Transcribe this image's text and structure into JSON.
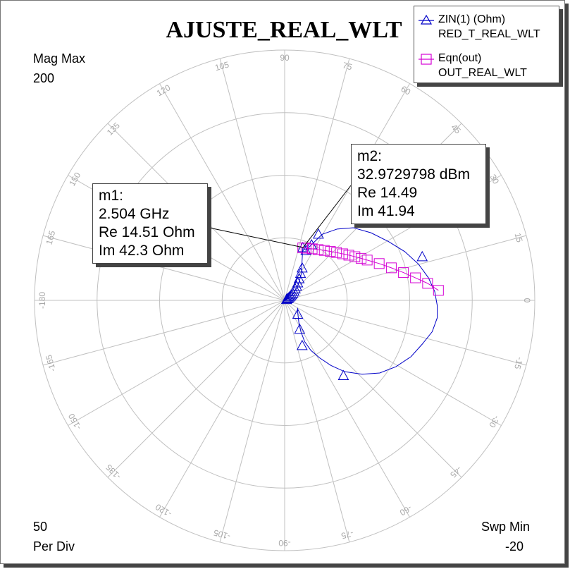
{
  "chart_data": {
    "type": "polar",
    "title": "AJUSTE_REAL_WLT",
    "radial_max_label": "Mag Max",
    "radial_max": "200",
    "radial_div": "50",
    "radial_div_label": "Per Div",
    "sweep_label": "Swp Min",
    "sweep_value": "-20",
    "r_max": 200,
    "r_div": 50,
    "angle_labels": [
      "0",
      "15",
      "30",
      "45",
      "60",
      "75",
      "90",
      "105",
      "120",
      "135",
      "150",
      "165",
      "-180",
      "-165",
      "-150",
      "-135",
      "-120",
      "-105",
      "-90",
      "-75",
      "-60",
      "-45",
      "-30",
      "-15"
    ],
    "angle_values": [
      0,
      15,
      30,
      45,
      60,
      75,
      90,
      105,
      120,
      135,
      150,
      165,
      180,
      195,
      210,
      225,
      240,
      255,
      270,
      285,
      300,
      315,
      330,
      345
    ],
    "series": [
      {
        "name": "ZIN(1) (Ohm)",
        "sub": "RED_T_REAL_WLT",
        "color": "#0000c8",
        "marker": "triangle",
        "points": [
          [
            0.8,
            0
          ],
          [
            1.5,
            0.8
          ],
          [
            2.2,
            1.4
          ],
          [
            3.0,
            2.0
          ],
          [
            4.0,
            2.8
          ],
          [
            5.0,
            3.6
          ],
          [
            6.0,
            4.6
          ],
          [
            7.2,
            5.8
          ],
          [
            8.2,
            7.3
          ],
          [
            9.3,
            9.2
          ],
          [
            10.3,
            11.4
          ],
          [
            11.3,
            14.1
          ],
          [
            12.3,
            17.4
          ],
          [
            13.4,
            21.6
          ],
          [
            14.51,
            42.3
          ],
          [
            17,
            40
          ],
          [
            21.5,
            44.5
          ],
          [
            30,
            52.8
          ],
          [
            42,
            57
          ],
          [
            55,
            58
          ],
          [
            69,
            54
          ],
          [
            83,
            47
          ],
          [
            96,
            39
          ],
          [
            107,
            29
          ],
          [
            115,
            18
          ],
          [
            120,
            7
          ],
          [
            122,
            -4
          ],
          [
            122,
            -14
          ],
          [
            118,
            -25
          ],
          [
            110,
            -35
          ],
          [
            101,
            -45
          ],
          [
            89,
            -53
          ],
          [
            76,
            -58
          ],
          [
            62,
            -59
          ],
          [
            48,
            -57
          ],
          [
            37,
            -52
          ],
          [
            28,
            -46
          ],
          [
            21,
            -40
          ],
          [
            16,
            -33
          ],
          [
            13,
            -25
          ],
          [
            11.4,
            -18
          ],
          [
            10.6,
            -11
          ],
          [
            10.3,
            -6
          ]
        ],
        "marker_points": [
          [
            1.5,
            0.8
          ],
          [
            2.2,
            1.4
          ],
          [
            3.0,
            2.0
          ],
          [
            3.9,
            2.8
          ],
          [
            4.8,
            3.6
          ],
          [
            5.6,
            4.6
          ],
          [
            6.6,
            5.8
          ],
          [
            7.5,
            7.3
          ],
          [
            8.5,
            9.2
          ],
          [
            9.5,
            11.4
          ],
          [
            10.5,
            14.1
          ],
          [
            11.6,
            17.4
          ],
          [
            12.7,
            21.6
          ],
          [
            14,
            26
          ],
          [
            14.51,
            42.3
          ],
          [
            17,
            40
          ],
          [
            21.5,
            44.5
          ],
          [
            27,
            53
          ],
          [
            110,
            35
          ],
          [
            47,
            -60
          ],
          [
            12,
            -23
          ],
          [
            14,
            -36
          ],
          [
            10.5,
            -11
          ]
        ]
      },
      {
        "name": "Eqn(out)",
        "sub": "OUT_REAL_WLT",
        "color": "#d400d4",
        "marker": "square",
        "points": [
          [
            14.49,
            41.94
          ],
          [
            17.1,
            41.7
          ],
          [
            22.0,
            41.2
          ],
          [
            26.8,
            40.6
          ],
          [
            31.7,
            39.9
          ],
          [
            36.6,
            39.1
          ],
          [
            41.5,
            38.2
          ],
          [
            46.4,
            37.2
          ],
          [
            51.3,
            36.1
          ],
          [
            56.2,
            34.9
          ],
          [
            61.1,
            33.6
          ],
          [
            66.0,
            32.2
          ],
          [
            75.6,
            29.4
          ],
          [
            85.3,
            26.0
          ],
          [
            95.0,
            22.2
          ],
          [
            104.6,
            18.0
          ],
          [
            114.3,
            13.6
          ],
          [
            123.0,
            8.0
          ]
        ],
        "marker_points": [
          [
            14.49,
            41.94
          ],
          [
            17.1,
            41.7
          ],
          [
            22.0,
            41.2
          ],
          [
            26.8,
            40.6
          ],
          [
            31.7,
            39.9
          ],
          [
            36.6,
            39.1
          ],
          [
            41.5,
            38.2
          ],
          [
            46.4,
            37.2
          ],
          [
            51.3,
            36.1
          ],
          [
            56.2,
            34.9
          ],
          [
            61.1,
            33.6
          ],
          [
            66.0,
            32.2
          ],
          [
            75.6,
            29.4
          ],
          [
            85.3,
            26.0
          ],
          [
            95.0,
            22.2
          ],
          [
            104.6,
            18.0
          ],
          [
            114.3,
            13.6
          ],
          [
            123.0,
            8.0
          ]
        ]
      }
    ],
    "markers": [
      {
        "name": "m1",
        "lines": [
          "m1:",
          "2.504 GHz",
          "Re 14.51 Ohm",
          "Im 42.3 Ohm"
        ],
        "re": 14.51,
        "im": 42.3
      },
      {
        "name": "m2",
        "lines": [
          "m2:",
          "32.9729798 dBm",
          "Re 14.49",
          "Im 41.94"
        ],
        "re": 14.49,
        "im": 41.94
      }
    ]
  }
}
